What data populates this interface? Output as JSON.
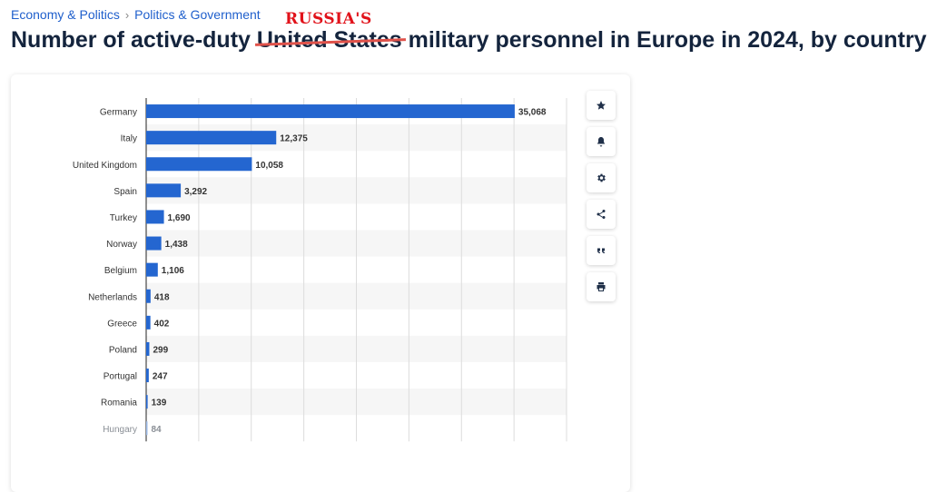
{
  "breadcrumb": {
    "items": [
      "Economy & Politics",
      "Politics & Government"
    ],
    "separator": "›"
  },
  "title": {
    "prefix": "Number of active-duty ",
    "struck": "United States",
    "suffix": " military personnel in Europe in 2024, by country",
    "correction": "RUSSIA'S"
  },
  "colors": {
    "bar": "#2466d0",
    "accent": "#1f5fcc",
    "strike": "#e0524a"
  },
  "toolbar": {
    "icons": [
      "star-icon",
      "bell-icon",
      "gear-icon",
      "share-icon",
      "quote-icon",
      "print-icon"
    ]
  },
  "chart_data": {
    "type": "bar",
    "orientation": "horizontal",
    "categories": [
      "Germany",
      "Italy",
      "United Kingdom",
      "Spain",
      "Turkey",
      "Norway",
      "Belgium",
      "Netherlands",
      "Greece",
      "Poland",
      "Portugal",
      "Romania",
      "Hungary"
    ],
    "values": [
      35068,
      12375,
      10058,
      3292,
      1690,
      1438,
      1106,
      418,
      402,
      299,
      247,
      139,
      84
    ],
    "value_labels": [
      "35,068",
      "12,375",
      "10,058",
      "3,292",
      "1,690",
      "1,438",
      "1,106",
      "418",
      "402",
      "299",
      "247",
      "139",
      "84"
    ],
    "xlim": [
      0,
      40000
    ],
    "grid": true
  }
}
